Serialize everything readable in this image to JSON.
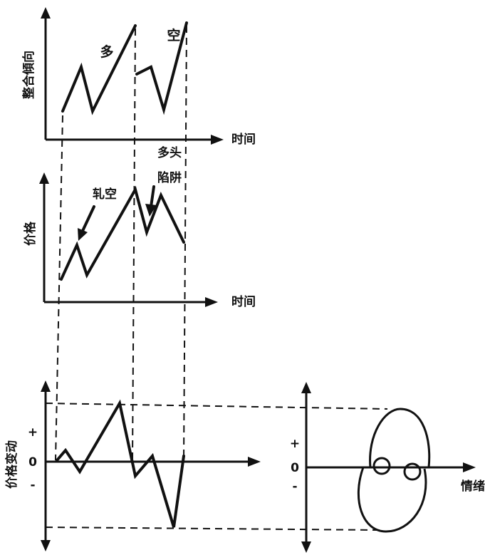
{
  "panel_top": {
    "y_label": "整合傾向",
    "x_label": "时间",
    "label_long": "多",
    "label_short": "空",
    "label_bull_trap": "多头"
  },
  "panel_mid": {
    "y_label": "价格",
    "x_label": "时间",
    "label_short_squeeze": "轧空",
    "label_trap": "陷阱"
  },
  "panel_bottom": {
    "y_label": "价格变动",
    "tick_plus": "+",
    "tick_zero": "0",
    "tick_minus": "-"
  },
  "panel_right": {
    "x_label": "情绪",
    "tick_plus": "+",
    "tick_zero": "0",
    "tick_minus": "-"
  }
}
